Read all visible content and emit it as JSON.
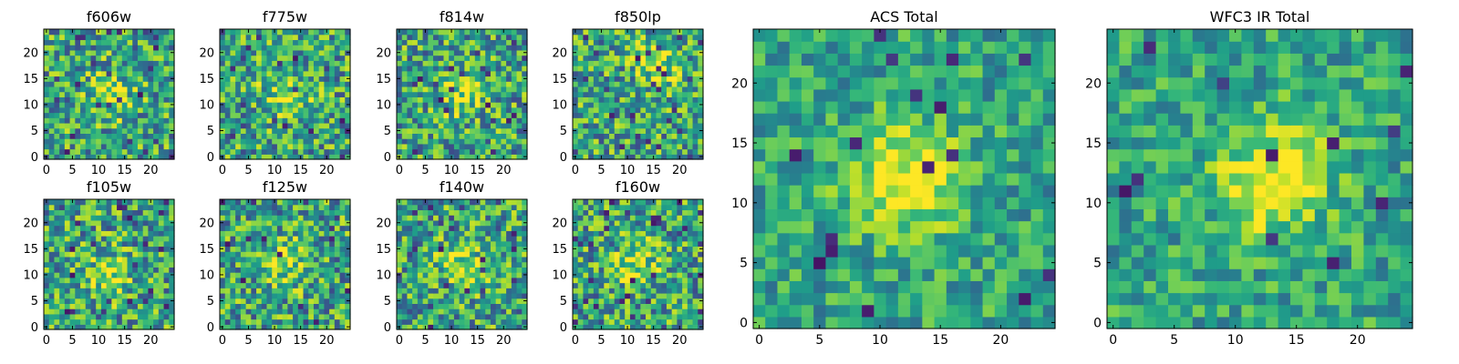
{
  "chart_data": [
    {
      "type": "heatmap",
      "title": "f606w",
      "grid": false,
      "colormap": "viridis",
      "x_ticks": [
        "0",
        "5",
        "10",
        "15",
        "20"
      ],
      "y_ticks": [
        "0",
        "5",
        "10",
        "15",
        "20"
      ],
      "xlim": [
        -0.5,
        24.5
      ],
      "ylim": [
        -0.5,
        24.5
      ],
      "shape": [
        25,
        25
      ],
      "peak": [
        12,
        12
      ]
    },
    {
      "type": "heatmap",
      "title": "f775w",
      "grid": false,
      "colormap": "viridis",
      "x_ticks": [
        "0",
        "5",
        "10",
        "15",
        "20"
      ],
      "y_ticks": [
        "0",
        "5",
        "10",
        "15",
        "20"
      ],
      "xlim": [
        -0.5,
        24.5
      ],
      "ylim": [
        -0.5,
        24.5
      ],
      "shape": [
        25,
        25
      ],
      "peak": [
        12,
        12
      ]
    },
    {
      "type": "heatmap",
      "title": "f814w",
      "grid": false,
      "colormap": "viridis",
      "x_ticks": [
        "0",
        "5",
        "10",
        "15",
        "20"
      ],
      "y_ticks": [
        "0",
        "5",
        "10",
        "15",
        "20"
      ],
      "xlim": [
        -0.5,
        24.5
      ],
      "ylim": [
        -0.5,
        24.5
      ],
      "shape": [
        25,
        25
      ],
      "peak": [
        12,
        12
      ]
    },
    {
      "type": "heatmap",
      "title": "f850lp",
      "grid": false,
      "colormap": "viridis",
      "x_ticks": [
        "0",
        "5",
        "10",
        "15",
        "20"
      ],
      "y_ticks": [
        "0",
        "5",
        "10",
        "15",
        "20"
      ],
      "xlim": [
        -0.5,
        24.5
      ],
      "ylim": [
        -0.5,
        24.5
      ],
      "shape": [
        25,
        25
      ],
      "peak": [
        16,
        18
      ]
    },
    {
      "type": "heatmap",
      "title": "f105w",
      "grid": false,
      "colormap": "viridis",
      "x_ticks": [
        "0",
        "5",
        "10",
        "15",
        "20"
      ],
      "y_ticks": [
        "0",
        "5",
        "10",
        "15",
        "20"
      ],
      "xlim": [
        -0.5,
        24.5
      ],
      "ylim": [
        -0.5,
        24.5
      ],
      "shape": [
        25,
        25
      ],
      "peak": [
        12,
        10
      ]
    },
    {
      "type": "heatmap",
      "title": "f125w",
      "grid": false,
      "colormap": "viridis",
      "x_ticks": [
        "0",
        "5",
        "10",
        "15",
        "20"
      ],
      "y_ticks": [
        "0",
        "5",
        "10",
        "15",
        "20"
      ],
      "xlim": [
        -0.5,
        24.5
      ],
      "ylim": [
        -0.5,
        24.5
      ],
      "shape": [
        25,
        25
      ],
      "peak": [
        12,
        12
      ]
    },
    {
      "type": "heatmap",
      "title": "f140w",
      "grid": false,
      "colormap": "viridis",
      "x_ticks": [
        "0",
        "5",
        "10",
        "15",
        "20"
      ],
      "y_ticks": [
        "0",
        "5",
        "10",
        "15",
        "20"
      ],
      "xlim": [
        -0.5,
        24.5
      ],
      "ylim": [
        -0.5,
        24.5
      ],
      "shape": [
        25,
        25
      ],
      "peak": [
        12,
        12
      ]
    },
    {
      "type": "heatmap",
      "title": "f160w",
      "grid": false,
      "colormap": "viridis",
      "x_ticks": [
        "0",
        "5",
        "10",
        "15",
        "20"
      ],
      "y_ticks": [
        "0",
        "5",
        "10",
        "15",
        "20"
      ],
      "xlim": [
        -0.5,
        24.5
      ],
      "ylim": [
        -0.5,
        24.5
      ],
      "shape": [
        25,
        25
      ],
      "peak": [
        12,
        12
      ]
    },
    {
      "type": "heatmap",
      "title": "ACS Total",
      "grid": false,
      "colormap": "viridis",
      "x_ticks": [
        "0",
        "5",
        "10",
        "15",
        "20"
      ],
      "y_ticks": [
        "0",
        "5",
        "10",
        "15",
        "20"
      ],
      "xlim": [
        -0.5,
        24.5
      ],
      "ylim": [
        -0.5,
        24.5
      ],
      "shape": [
        25,
        25
      ],
      "peak": [
        12,
        12
      ]
    },
    {
      "type": "heatmap",
      "title": "WFC3 IR Total",
      "grid": false,
      "colormap": "viridis",
      "x_ticks": [
        "0",
        "5",
        "10",
        "15",
        "20"
      ],
      "y_ticks": [
        "0",
        "5",
        "10",
        "15",
        "20"
      ],
      "xlim": [
        -0.5,
        24.5
      ],
      "ylim": [
        -0.5,
        24.5
      ],
      "shape": [
        25,
        25
      ],
      "peak": [
        13,
        12
      ]
    }
  ]
}
